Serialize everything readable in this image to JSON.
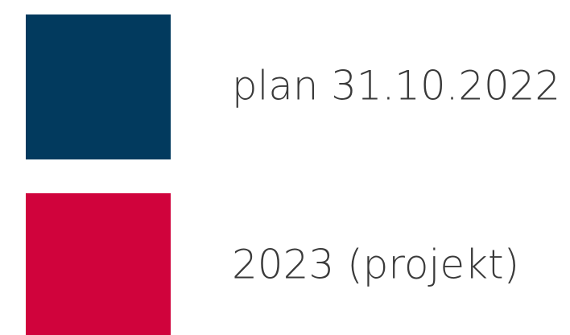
{
  "legend": {
    "items": [
      {
        "label": "plan 31.10.2022",
        "color": "#023a5e"
      },
      {
        "label": "2023 (projekt)",
        "color": "#d0033c"
      }
    ]
  }
}
